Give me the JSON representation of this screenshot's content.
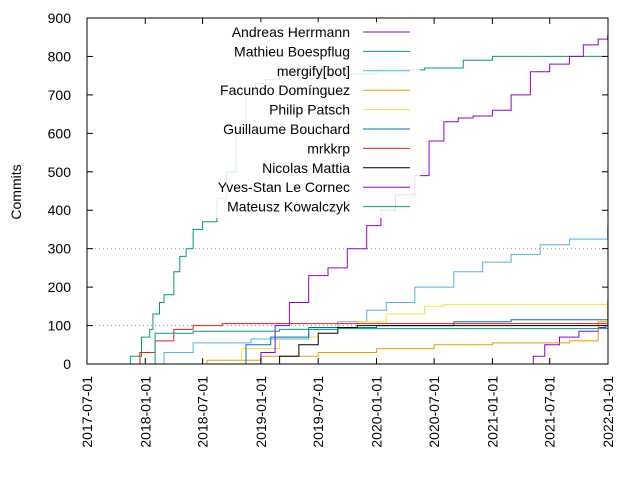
{
  "chart_data": {
    "type": "line",
    "title": "",
    "xlabel": "",
    "ylabel": "Commits",
    "x_tick_labels": [
      "2017-07-01",
      "2018-01-01",
      "2018-07-01",
      "2019-01-01",
      "2019-07-01",
      "2020-01-01",
      "2020-07-01",
      "2021-01-01",
      "2021-07-01",
      "2022-01-01"
    ],
    "y_tick_labels": [
      "0",
      "100",
      "200",
      "300",
      "400",
      "500",
      "600",
      "700",
      "800",
      "900"
    ],
    "xlim": [
      "2017-07-01",
      "2022-01-01"
    ],
    "ylim": [
      0,
      900
    ],
    "grid": "horizontal dotted at 100 and 300",
    "legend_position": "top-left inside",
    "series": [
      {
        "name": "Andreas Herrmann",
        "color": "#9400d3",
        "points": [
          [
            "2017-07-01",
            0
          ],
          [
            "2021-04-15",
            0
          ],
          [
            "2021-05-10",
            20
          ],
          [
            "2021-06-15",
            50
          ],
          [
            "2021-08-01",
            70
          ],
          [
            "2021-10-01",
            85
          ],
          [
            "2021-12-01",
            95
          ],
          [
            "2021-12-25",
            100
          ]
        ]
      },
      {
        "name": "Mathieu Boespflug",
        "color": "#009e73",
        "points": [
          [
            "2017-07-01",
            0
          ],
          [
            "2017-10-15",
            0
          ],
          [
            "2017-11-15",
            20
          ],
          [
            "2017-12-20",
            70
          ],
          [
            "2018-01-15",
            90
          ],
          [
            "2018-01-25",
            130
          ],
          [
            "2018-02-15",
            160
          ],
          [
            "2018-03-01",
            180
          ],
          [
            "2018-04-01",
            240
          ],
          [
            "2018-04-20",
            280
          ],
          [
            "2018-05-10",
            300
          ],
          [
            "2018-06-01",
            350
          ],
          [
            "2018-07-01",
            370
          ],
          [
            "2018-08-15",
            430
          ],
          [
            "2018-09-15",
            500
          ],
          [
            "2018-10-15",
            600
          ],
          [
            "2018-11-15",
            700
          ],
          [
            "2018-12-15",
            730
          ],
          [
            "2019-01-15",
            740
          ],
          [
            "2019-03-01",
            755
          ],
          [
            "2020-01-01",
            765
          ],
          [
            "2020-06-01",
            770
          ],
          [
            "2020-10-01",
            790
          ],
          [
            "2021-01-01",
            800
          ],
          [
            "2021-12-31",
            800
          ]
        ]
      },
      {
        "name": "mergify[bot]",
        "color": "#56b4e9",
        "points": [
          [
            "2017-07-01",
            0
          ],
          [
            "2018-02-01",
            0
          ],
          [
            "2018-03-01",
            30
          ],
          [
            "2018-06-01",
            55
          ],
          [
            "2018-12-01",
            65
          ],
          [
            "2019-06-01",
            90
          ],
          [
            "2019-09-01",
            110
          ],
          [
            "2019-12-01",
            140
          ],
          [
            "2020-02-01",
            160
          ],
          [
            "2020-05-01",
            200
          ],
          [
            "2020-09-01",
            240
          ],
          [
            "2020-12-01",
            265
          ],
          [
            "2021-03-01",
            285
          ],
          [
            "2021-06-01",
            310
          ],
          [
            "2021-09-01",
            325
          ],
          [
            "2021-12-31",
            355
          ]
        ]
      },
      {
        "name": "Facundo Domínguez",
        "color": "#e69f00",
        "points": [
          [
            "2017-07-01",
            0
          ],
          [
            "2018-06-01",
            0
          ],
          [
            "2018-07-15",
            10
          ],
          [
            "2019-01-01",
            20
          ],
          [
            "2019-07-01",
            30
          ],
          [
            "2020-01-01",
            40
          ],
          [
            "2020-07-01",
            50
          ],
          [
            "2021-01-01",
            55
          ],
          [
            "2021-09-01",
            60
          ],
          [
            "2021-12-01",
            110
          ],
          [
            "2021-12-31",
            165
          ]
        ]
      },
      {
        "name": "Philip Patsch",
        "color": "#f0e442",
        "points": [
          [
            "2017-07-01",
            0
          ],
          [
            "2018-09-01",
            0
          ],
          [
            "2018-11-01",
            40
          ],
          [
            "2019-03-01",
            70
          ],
          [
            "2019-07-01",
            95
          ],
          [
            "2019-11-01",
            110
          ],
          [
            "2020-02-01",
            130
          ],
          [
            "2020-06-01",
            150
          ],
          [
            "2020-08-01",
            155
          ],
          [
            "2021-12-31",
            155
          ]
        ]
      },
      {
        "name": "Guillaume Bouchard",
        "color": "#0072b2",
        "points": [
          [
            "2017-07-01",
            0
          ],
          [
            "2018-10-01",
            0
          ],
          [
            "2018-11-15",
            50
          ],
          [
            "2019-02-01",
            70
          ],
          [
            "2019-06-01",
            95
          ],
          [
            "2020-01-01",
            100
          ],
          [
            "2020-09-01",
            110
          ],
          [
            "2021-03-01",
            115
          ],
          [
            "2021-12-31",
            115
          ]
        ]
      },
      {
        "name": "mrkkrp",
        "color": "#e51e10",
        "points": [
          [
            "2017-07-01",
            0
          ],
          [
            "2017-11-15",
            0
          ],
          [
            "2017-12-15",
            30
          ],
          [
            "2018-02-01",
            60
          ],
          [
            "2018-04-01",
            90
          ],
          [
            "2018-06-01",
            100
          ],
          [
            "2018-09-01",
            105
          ],
          [
            "2021-12-31",
            105
          ]
        ]
      },
      {
        "name": "Nicolas Mattia",
        "color": "#000000",
        "points": [
          [
            "2017-07-01",
            0
          ],
          [
            "2019-02-01",
            0
          ],
          [
            "2019-03-01",
            20
          ],
          [
            "2019-05-01",
            50
          ],
          [
            "2019-07-01",
            80
          ],
          [
            "2019-09-01",
            95
          ],
          [
            "2019-11-01",
            100
          ],
          [
            "2021-12-31",
            100
          ]
        ]
      },
      {
        "name": "Yves-Stan Le Cornec",
        "color": "#9400d3",
        "points": [
          [
            "2017-07-01",
            0
          ],
          [
            "2018-12-01",
            0
          ],
          [
            "2019-01-01",
            30
          ],
          [
            "2019-02-15",
            100
          ],
          [
            "2019-04-01",
            160
          ],
          [
            "2019-06-01",
            230
          ],
          [
            "2019-08-01",
            250
          ],
          [
            "2019-10-01",
            300
          ],
          [
            "2019-12-01",
            360
          ],
          [
            "2020-01-15",
            400
          ],
          [
            "2020-03-01",
            440
          ],
          [
            "2020-05-01",
            490
          ],
          [
            "2020-06-15",
            580
          ],
          [
            "2020-08-01",
            630
          ],
          [
            "2020-09-15",
            640
          ],
          [
            "2020-11-01",
            645
          ],
          [
            "2021-01-01",
            660
          ],
          [
            "2021-03-01",
            700
          ],
          [
            "2021-05-01",
            760
          ],
          [
            "2021-07-01",
            780
          ],
          [
            "2021-09-01",
            800
          ],
          [
            "2021-10-15",
            830
          ],
          [
            "2021-12-01",
            845
          ],
          [
            "2021-12-31",
            855
          ]
        ]
      },
      {
        "name": "Mateusz Kowalczyk",
        "color": "#009e73",
        "points": [
          [
            "2017-07-01",
            0
          ],
          [
            "2018-01-01",
            0
          ],
          [
            "2018-02-01",
            80
          ],
          [
            "2018-06-01",
            85
          ],
          [
            "2019-03-01",
            90
          ],
          [
            "2019-09-01",
            92
          ],
          [
            "2021-12-31",
            95
          ]
        ]
      }
    ]
  }
}
